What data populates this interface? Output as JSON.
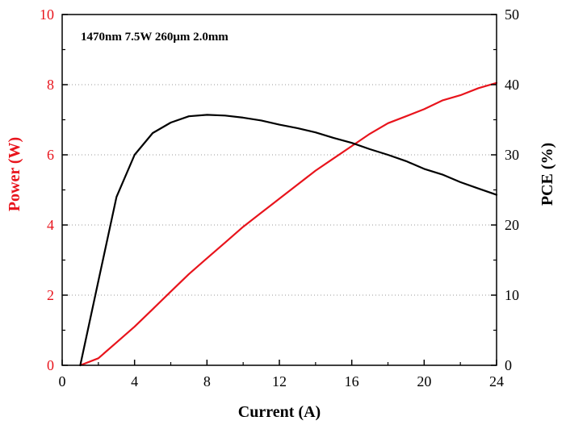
{
  "chart_data": {
    "type": "line",
    "annotation": "1470nm 7.5W 260μm 2.0mm",
    "xlabel": "Current (A)",
    "ylabel_left": "Power (W)",
    "ylabel_right": "PCE (%)",
    "xlim": [
      0,
      24
    ],
    "ylim_left": [
      0,
      10
    ],
    "ylim_right": [
      0,
      50
    ],
    "xticks": [
      0,
      4,
      8,
      12,
      16,
      20,
      24
    ],
    "yticks_left": [
      0,
      2,
      4,
      6,
      8,
      10
    ],
    "yticks_right": [
      0,
      10,
      20,
      30,
      40,
      50
    ],
    "grid": "horizontal dotted",
    "colors": {
      "power": "#e8141c",
      "pce": "#000000",
      "axes": "#000000"
    },
    "series": [
      {
        "axis": "left",
        "color": "#e8141c",
        "x": [
          1,
          2,
          3,
          4,
          5,
          6,
          7,
          8,
          9,
          10,
          11,
          12,
          13,
          14,
          15,
          16,
          17,
          18,
          19,
          20,
          21,
          22,
          23,
          24
        ],
        "values": [
          0,
          0.2,
          0.65,
          1.1,
          1.6,
          2.1,
          2.6,
          3.05,
          3.5,
          3.95,
          4.35,
          4.75,
          5.15,
          5.55,
          5.9,
          6.25,
          6.6,
          6.9,
          7.1,
          7.3,
          7.55,
          7.7,
          7.9,
          8.05
        ]
      },
      {
        "axis": "right",
        "color": "#000000",
        "x": [
          1,
          2,
          3,
          4,
          5,
          6,
          7,
          8,
          9,
          10,
          11,
          12,
          13,
          14,
          15,
          16,
          17,
          18,
          19,
          20,
          21,
          22,
          23,
          24
        ],
        "values": [
          0,
          12,
          24,
          30,
          33.1,
          34.6,
          35.5,
          35.7,
          35.6,
          35.3,
          34.9,
          34.3,
          33.8,
          33.2,
          32.4,
          31.7,
          30.8,
          30,
          29.1,
          28,
          27.2,
          26.1,
          25.2,
          24.3
        ]
      }
    ]
  }
}
